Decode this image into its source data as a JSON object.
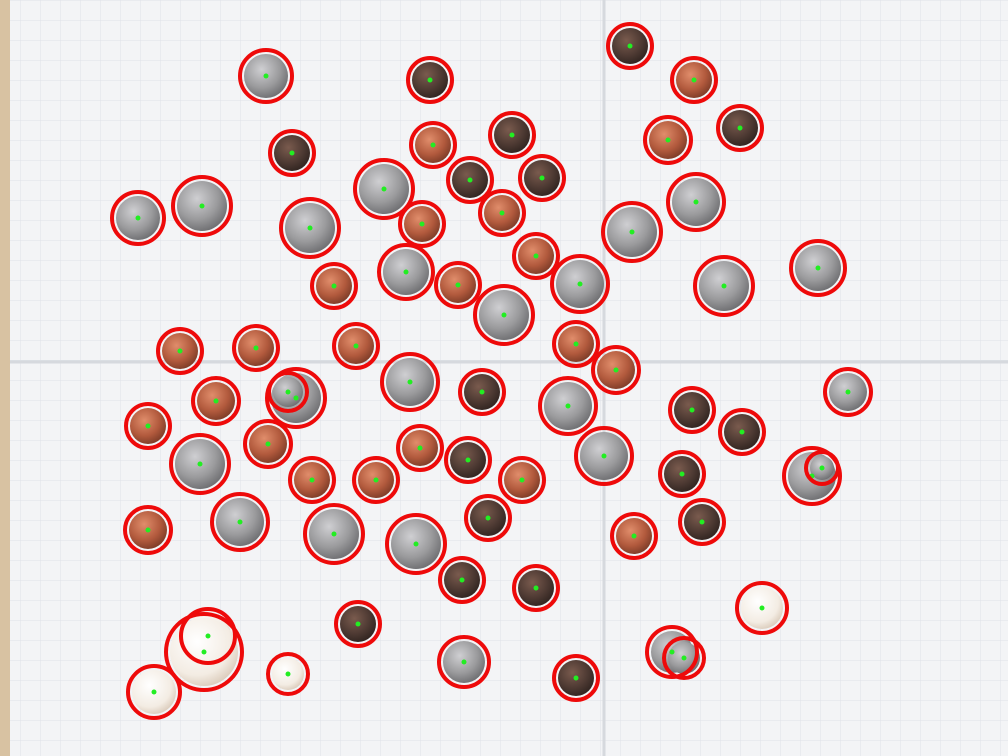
{
  "colors": {
    "paper": "#f3f4f6",
    "paper_shadow": "#dde0e5",
    "grid": "#c9ced6",
    "table": "#d8c2a2",
    "circle": "#ee0a0a",
    "center": "#22ee22",
    "penny": "#b25a3d",
    "penny_dark": "#4e3a33",
    "quarter": "#9a9a9c",
    "shiny": "#f7f2ec"
  },
  "coin_types": [
    "penny",
    "penny_dark",
    "quarter",
    "shiny"
  ],
  "detection_count": 77
}
